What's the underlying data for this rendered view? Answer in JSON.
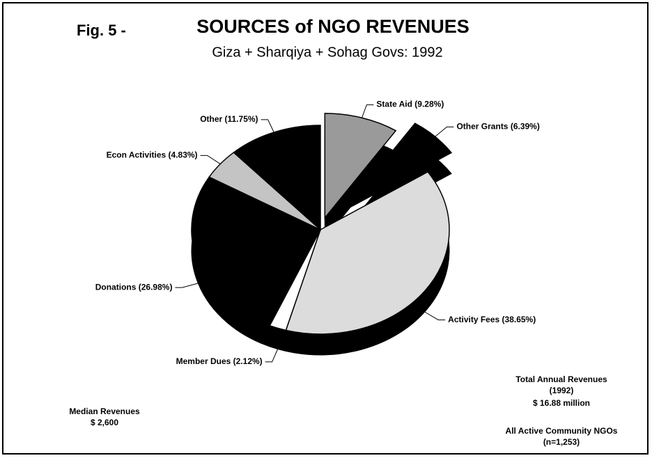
{
  "chart_data": {
    "type": "pie",
    "figure_label": "Fig. 5 -",
    "title": "SOURCES of NGO REVENUES",
    "subtitle": "Giza + Sharqiya + Sohag Govs:  1992",
    "categories": [
      "State Aid (9.28%)",
      "Other Grants (6.39%)",
      "Activity Fees (38.65%)",
      "Member Dues (2.12%)",
      "Donations (26.98%)",
      "Econ  Activities (4.83%)",
      "Other (11.75%)"
    ],
    "values": [
      9.28,
      6.39,
      38.65,
      2.12,
      26.98,
      4.83,
      11.75
    ],
    "colors": [
      "#9a9a9a",
      "#000000",
      "#dcdcdc",
      "#ffffff",
      "#000000",
      "#c4c4c4",
      "#000000"
    ],
    "annotations": [
      "Median Revenues",
      "$ 2,600",
      "Total Annual Revenues",
      "(1992)",
      "$ 16.88 million",
      "All Active Community NGOs",
      "(n=1,253)"
    ]
  }
}
